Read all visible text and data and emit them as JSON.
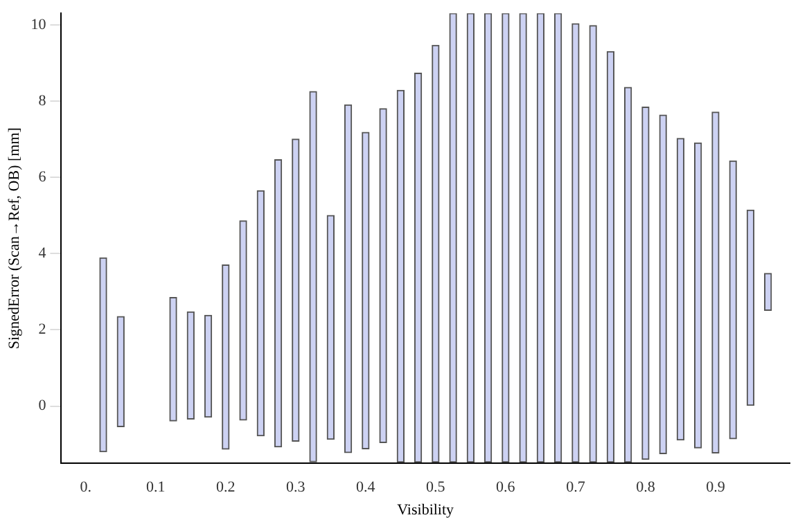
{
  "chart_data": {
    "type": "bar",
    "xlabel": "Visibility",
    "ylabel": "SignedError (Scan→Ref, OB) [mm]",
    "x": [
      0.025,
      0.05,
      0.125,
      0.15,
      0.175,
      0.2,
      0.225,
      0.25,
      0.275,
      0.3,
      0.325,
      0.35,
      0.375,
      0.4,
      0.425,
      0.45,
      0.475,
      0.5,
      0.525,
      0.55,
      0.575,
      0.6,
      0.625,
      0.65,
      0.675,
      0.7,
      0.725,
      0.75,
      0.775,
      0.8,
      0.825,
      0.85,
      0.875,
      0.9,
      0.925,
      0.95,
      0.975
    ],
    "base": [
      -1.2,
      -0.54,
      -0.39,
      -0.34,
      -0.29,
      -1.13,
      -0.37,
      -0.78,
      -1.07,
      -0.92,
      -1.46,
      -0.87,
      -1.22,
      -1.12,
      -0.96,
      -1.47,
      -1.47,
      -1.47,
      -1.47,
      -1.47,
      -1.47,
      -1.47,
      -1.47,
      -1.47,
      -1.47,
      -1.47,
      -1.47,
      -1.47,
      -1.47,
      -1.4,
      -1.25,
      -0.89,
      -1.1,
      -1.23,
      -0.86,
      0.02,
      2.51
    ],
    "values": [
      5.09,
      2.89,
      3.24,
      2.81,
      2.67,
      4.83,
      5.23,
      6.43,
      7.53,
      7.92,
      9.71,
      5.87,
      9.12,
      8.3,
      8.76,
      9.75,
      10.2,
      10.93,
      11.77,
      11.77,
      11.77,
      11.77,
      11.77,
      11.77,
      11.77,
      11.5,
      11.45,
      10.77,
      9.83,
      9.24,
      8.88,
      7.91,
      8.0,
      8.94,
      7.29,
      5.12,
      0.97
    ],
    "color": "#cdd2f3",
    "xlim": [
      -0.035,
      1.006
    ],
    "xticks": [
      {
        "value": 0,
        "label": "0."
      },
      0.1,
      0.2,
      0.3,
      0.4,
      0.5,
      0.6,
      0.7,
      0.8,
      0.9
    ],
    "ylim": [
      -1.5,
      10.3
    ],
    "yticks": [
      0,
      2,
      4,
      6,
      8,
      10
    ],
    "grid": false,
    "legend": false
  }
}
